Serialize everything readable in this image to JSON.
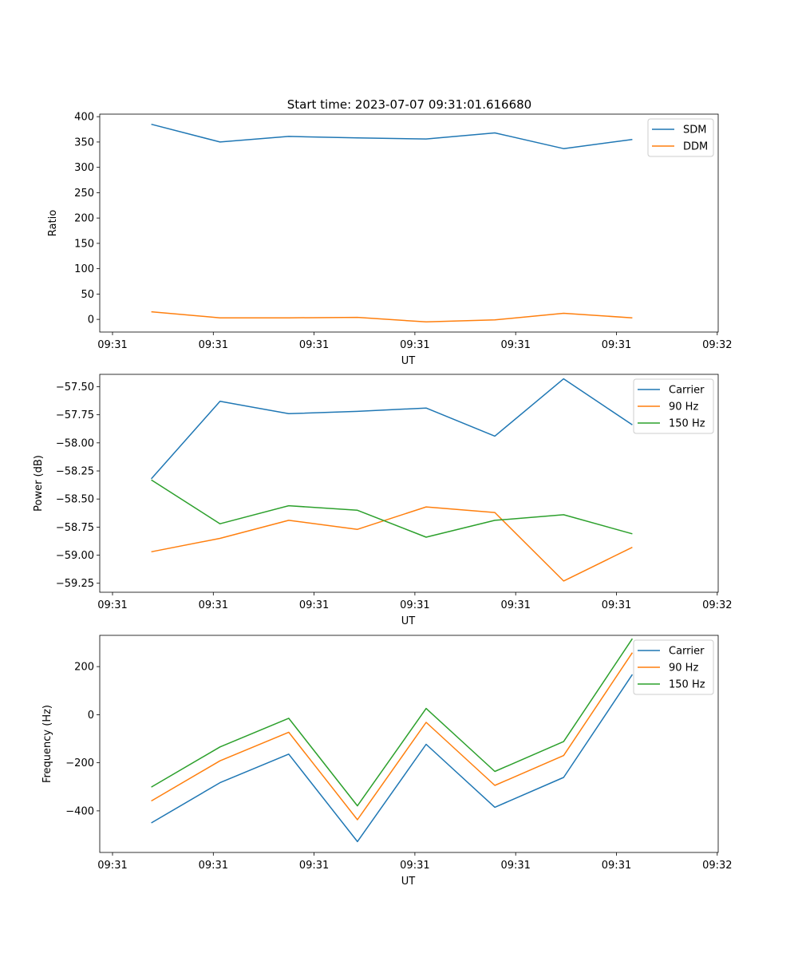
{
  "figure": {
    "title": "Start time: 2023-07-07 09:31:01.616680"
  },
  "chart_data": [
    {
      "type": "line",
      "xlabel": "UT",
      "ylabel": "Ratio",
      "x_tick_labels": [
        "09:31",
        "09:31",
        "09:31",
        "09:31",
        "09:31",
        "09:31",
        "09:32"
      ],
      "x": [
        1,
        2,
        3,
        4,
        5,
        6,
        7,
        8
      ],
      "xlim": [
        0.25,
        9.25
      ],
      "ylim": [
        -25,
        405
      ],
      "y_ticks": [
        0,
        50,
        100,
        150,
        200,
        250,
        300,
        350,
        400
      ],
      "y_tick_labels": [
        "0",
        "50",
        "100",
        "150",
        "200",
        "250",
        "300",
        "350",
        "400"
      ],
      "legend_position": "top-right",
      "series": [
        {
          "name": "SDM",
          "color": "#1f77b4",
          "values": [
            385,
            350,
            361,
            358,
            356,
            368,
            337,
            355
          ]
        },
        {
          "name": "DDM",
          "color": "#ff7f0e",
          "values": [
            15,
            3,
            3,
            4,
            -5,
            -1,
            12,
            3
          ]
        }
      ]
    },
    {
      "type": "line",
      "xlabel": "UT",
      "ylabel": "Power (dB)",
      "x_tick_labels": [
        "09:31",
        "09:31",
        "09:31",
        "09:31",
        "09:31",
        "09:31",
        "09:32"
      ],
      "x": [
        1,
        2,
        3,
        4,
        5,
        6,
        7,
        8
      ],
      "xlim": [
        0.25,
        9.25
      ],
      "ylim": [
        -59.33,
        -57.39
      ],
      "y_ticks": [
        -59.25,
        -59.0,
        -58.75,
        -58.5,
        -58.25,
        -58.0,
        -57.75,
        -57.5
      ],
      "y_tick_labels": [
        "−59.25",
        "−59.00",
        "−58.75",
        "−58.50",
        "−58.25",
        "−58.00",
        "−57.75",
        "−57.50"
      ],
      "legend_position": "top-right",
      "series": [
        {
          "name": "Carrier",
          "color": "#1f77b4",
          "values": [
            -58.32,
            -57.63,
            -57.74,
            -57.72,
            -57.69,
            -57.94,
            -57.43,
            -57.84
          ]
        },
        {
          "name": "90 Hz",
          "color": "#ff7f0e",
          "values": [
            -58.97,
            -58.85,
            -58.69,
            -58.77,
            -58.57,
            -58.62,
            -59.23,
            -58.93
          ]
        },
        {
          "name": "150 Hz",
          "color": "#2ca02c",
          "values": [
            -58.33,
            -58.72,
            -58.56,
            -58.6,
            -58.84,
            -58.69,
            -58.64,
            -58.81
          ]
        }
      ]
    },
    {
      "type": "line",
      "xlabel": "UT",
      "ylabel": "Frequency (Hz)",
      "x_tick_labels": [
        "09:31",
        "09:31",
        "09:31",
        "09:31",
        "09:31",
        "09:31",
        "09:32"
      ],
      "x": [
        1,
        2,
        3,
        4,
        5,
        6,
        7,
        8
      ],
      "xlim": [
        0.25,
        9.25
      ],
      "ylim": [
        -573,
        330
      ],
      "y_ticks": [
        -400,
        -200,
        0,
        200
      ],
      "y_tick_labels": [
        "−400",
        "−200",
        "0",
        "200"
      ],
      "legend_position": "top-right",
      "series": [
        {
          "name": "Carrier",
          "color": "#1f77b4",
          "values": [
            -450,
            -283,
            -164,
            -528,
            -123,
            -385,
            -261,
            167
          ]
        },
        {
          "name": "90 Hz",
          "color": "#ff7f0e",
          "values": [
            -359,
            -192,
            -73,
            -437,
            -32,
            -294,
            -170,
            258
          ]
        },
        {
          "name": "150 Hz",
          "color": "#2ca02c",
          "values": [
            -301,
            -134,
            -15,
            -379,
            26,
            -236,
            -112,
            316
          ]
        }
      ]
    }
  ]
}
